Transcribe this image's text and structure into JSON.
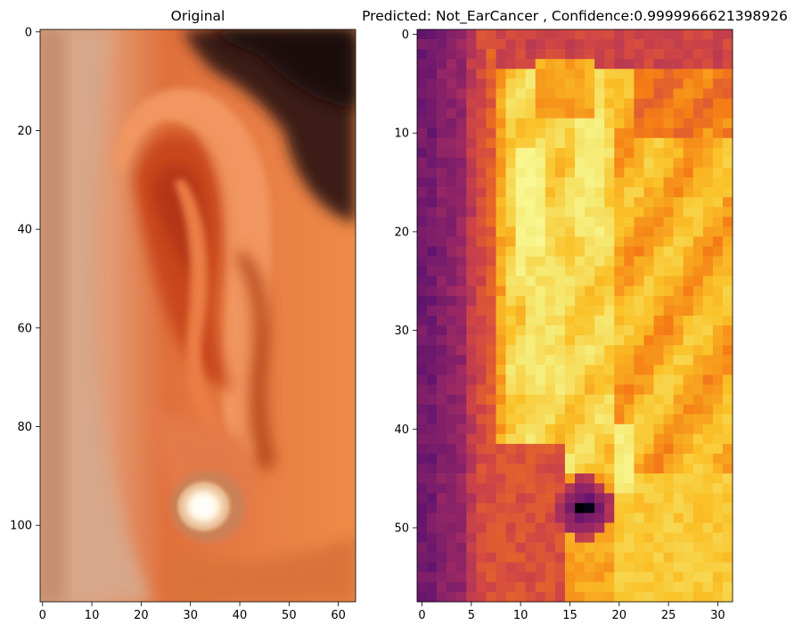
{
  "chart_data": [
    {
      "type": "image",
      "title": "Original",
      "image_shape": [
        116,
        64
      ],
      "xticks": [
        0,
        10,
        20,
        30,
        40,
        50,
        60
      ],
      "yticks": [
        0,
        20,
        40,
        60,
        80,
        100
      ],
      "xlim": [
        -0.5,
        63.5
      ],
      "ylim": [
        115.5,
        -0.5
      ],
      "content": "photograph of an ear with a stud earring"
    },
    {
      "type": "heatmap",
      "title": "Predicted: Not_EarCancer , Confidence:0.9999966621398926",
      "colormap": "inferno",
      "grid_shape": [
        58,
        32
      ],
      "xticks": [
        0,
        5,
        10,
        15,
        20,
        25,
        30
      ],
      "yticks": [
        0,
        10,
        20,
        30,
        40,
        50
      ],
      "xlim": [
        -0.5,
        31.5
      ],
      "ylim": [
        57.5,
        -0.5
      ],
      "prediction": "Not_EarCancer",
      "confidence": 0.9999966621398926
    }
  ]
}
